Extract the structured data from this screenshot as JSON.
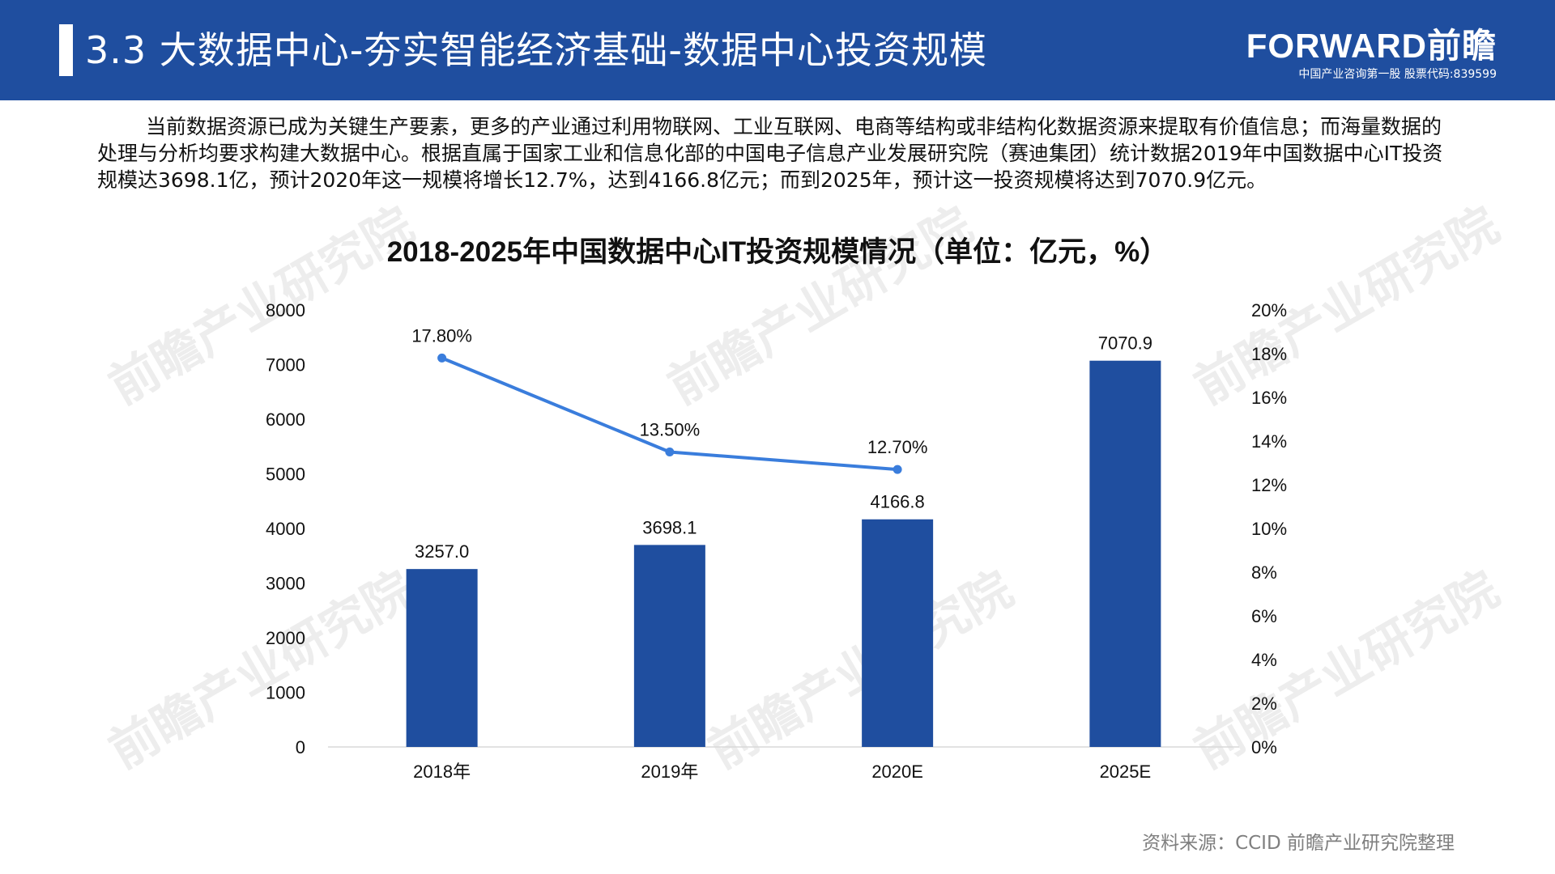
{
  "header": {
    "title": "3.3 大数据中心-夯实智能经济基础-数据中心投资规模",
    "logo_main": "FORWARD前瞻",
    "logo_sub": "中国产业咨询第一股 股票代码:839599"
  },
  "intro_text": "当前数据资源已成为关键生产要素，更多的产业通过利用物联网、工业互联网、电商等结构或非结构化数据资源来提取有价值信息；而海量数据的处理与分析均要求构建大数据中心。根据直属于国家工业和信息化部的中国电子信息产业发展研究院（赛迪集团）统计数据2019年中国数据中心IT投资规模达3698.1亿，预计2020年这一规模将增长12.7%，达到4166.8亿元；而到2025年，预计这一投资规模将达到7070.9亿元。",
  "watermark": "前瞻产业研究院",
  "chart_data": {
    "type": "bar",
    "title": "2018-2025年中国数据中心IT投资规模情况（单位：亿元，%）",
    "categories": [
      "2018年",
      "2019年",
      "2020E",
      "2025E"
    ],
    "series": [
      {
        "values": [
          3257.0,
          3698.1,
          4166.8,
          7070.9
        ],
        "labels": [
          "3257.0",
          "3698.1",
          "4166.8",
          "7070.9"
        ]
      },
      {
        "type": "line",
        "axis": "right",
        "values": [
          17.8,
          13.5,
          12.7,
          null
        ],
        "labels": [
          "17.80%",
          "13.50%",
          "12.70%",
          ""
        ]
      }
    ],
    "ylim": [
      0,
      8000
    ],
    "y_ticks": [
      "0",
      "1000",
      "2000",
      "3000",
      "4000",
      "5000",
      "6000",
      "7000",
      "8000"
    ],
    "y2lim": [
      0,
      20
    ],
    "y2_ticks": [
      "0%",
      "2%",
      "4%",
      "6%",
      "8%",
      "10%",
      "12%",
      "14%",
      "16%",
      "18%",
      "20%"
    ],
    "colors": {
      "bar": "#1f4e9f",
      "line": "#3a7ddc",
      "axis": "#d9d9d9"
    },
    "grid": false
  },
  "source": "资料来源：CCID 前瞻产业研究院整理"
}
